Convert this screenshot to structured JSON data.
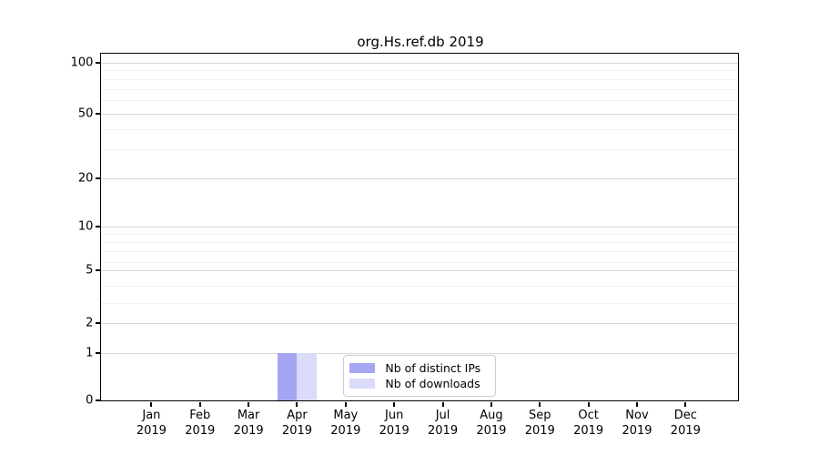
{
  "chart_data": {
    "type": "bar",
    "title": "org.Hs.ref.db 2019",
    "categories": [
      "Jan",
      "Feb",
      "Mar",
      "Apr",
      "May",
      "Jun",
      "Jul",
      "Aug",
      "Sep",
      "Oct",
      "Nov",
      "Dec"
    ],
    "year_label": "2019",
    "series": [
      {
        "name": "Nb of distinct IPs",
        "color": "#a5a5f3",
        "values": [
          0,
          0,
          0,
          1,
          0,
          0,
          0,
          0,
          0,
          0,
          0,
          0
        ]
      },
      {
        "name": "Nb of downloads",
        "color": "#dbdbfa",
        "values": [
          0,
          0,
          0,
          1,
          0,
          0,
          0,
          0,
          0,
          0,
          0,
          0
        ]
      }
    ],
    "xlabel": "",
    "ylabel": "",
    "y_ticks": [
      0,
      1,
      2,
      5,
      10,
      20,
      50,
      100
    ],
    "minor_gridline_values": [
      3,
      4,
      6,
      7,
      8,
      9,
      30,
      40,
      60,
      70,
      80,
      90
    ],
    "ylim": [
      0,
      115
    ],
    "scale": "log1p",
    "grid": "horizontal",
    "legend_position": "bottom-center-inside"
  }
}
